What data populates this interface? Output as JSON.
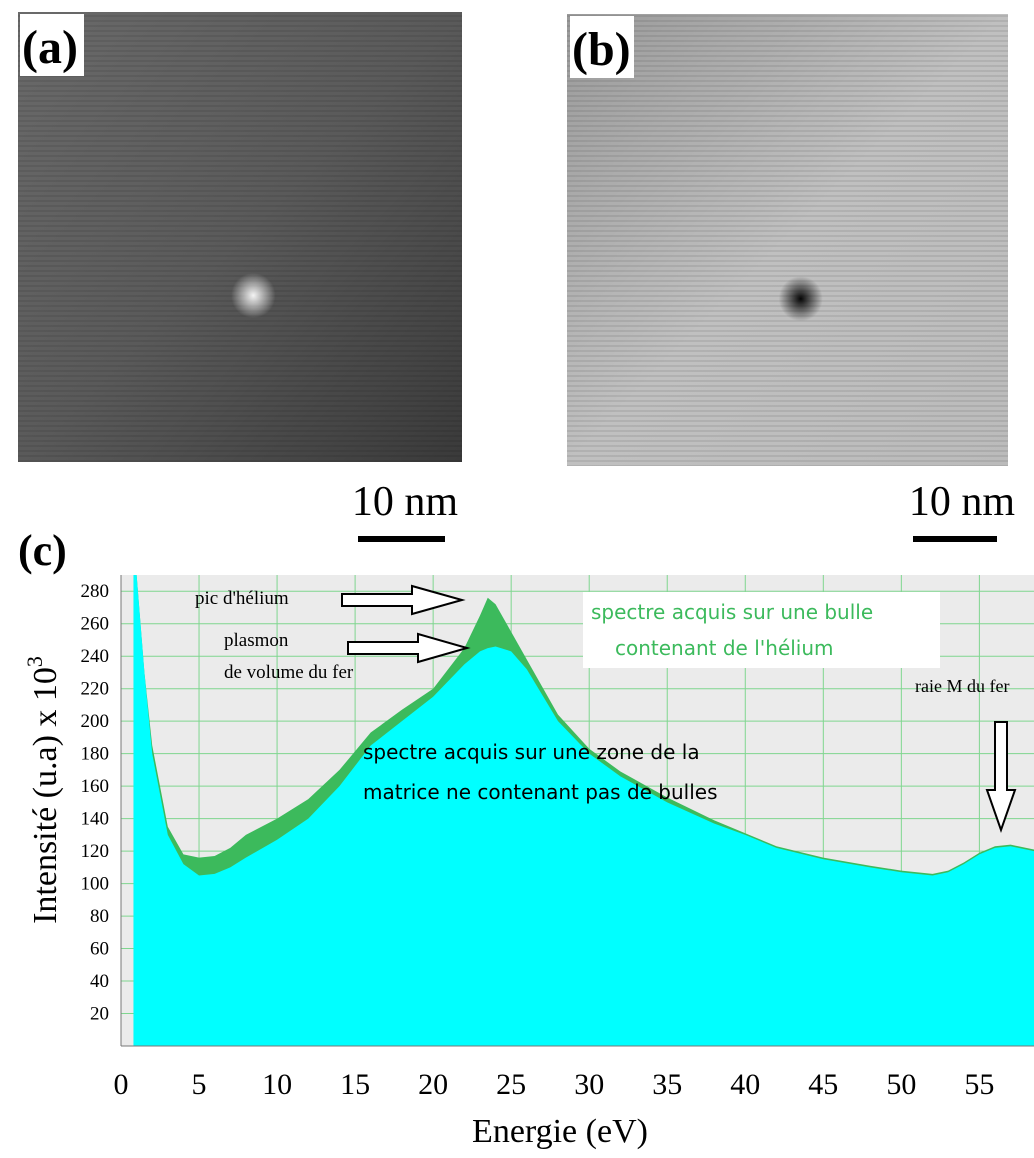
{
  "images": [
    {
      "label": "(a)",
      "scale_bar": "10 nm"
    },
    {
      "label": "(b)",
      "scale_bar": "10 nm"
    }
  ],
  "chart_data": {
    "type": "area",
    "panel_label": "(c)",
    "x_label": "Energie (eV)",
    "y_label": "Intensité (u.a)  x 10",
    "y_label_exponent": "3",
    "x": [
      0.8,
      1,
      1.5,
      2,
      3,
      4,
      5,
      6,
      7,
      8,
      10,
      12,
      14,
      16,
      18,
      20,
      22,
      23,
      23.5,
      24,
      25,
      26,
      28,
      30,
      32,
      35,
      38,
      40,
      42,
      45,
      48,
      50,
      52,
      53,
      54,
      55,
      56,
      57,
      58.5
    ],
    "series": [
      {
        "color": "#3cba5c",
        "values": [
          290,
          290,
          230,
          185,
          135,
          118,
          116,
          117,
          122,
          130,
          140,
          152,
          170,
          193,
          207,
          220,
          245,
          265,
          276,
          272,
          255,
          238,
          204,
          183,
          169,
          153,
          139,
          131,
          123,
          116,
          111,
          108,
          106,
          108,
          113,
          119,
          123,
          124,
          121
        ]
      },
      {
        "color": "#00ffff",
        "values": [
          290,
          290,
          230,
          180,
          130,
          112,
          105,
          106,
          110,
          116,
          127,
          140,
          160,
          185,
          200,
          215,
          235,
          243,
          245,
          246,
          243,
          232,
          200,
          180,
          166,
          150,
          137,
          130,
          122,
          115,
          110,
          107,
          105,
          107,
          112,
          118,
          122,
          123,
          120
        ]
      }
    ],
    "xlim": [
      0,
      58.5
    ],
    "ylim": [
      0,
      290
    ],
    "xticks": [
      0,
      5,
      10,
      15,
      20,
      25,
      30,
      35,
      40,
      45,
      50,
      55
    ],
    "yticks": [
      20,
      40,
      60,
      80,
      100,
      120,
      140,
      160,
      180,
      200,
      220,
      240,
      260,
      280
    ],
    "grid": true,
    "annotations": {
      "helium_peak": "pic d'hélium",
      "plasmon": [
        "plasmon",
        "de volume du fer"
      ],
      "bubble_spectrum": [
        "spectre acquis sur une bulle",
        "contenant de l'hélium"
      ],
      "matrix_spectrum": [
        "spectre acquis sur une zone de la",
        "matrice ne contenant pas de bulles"
      ],
      "iron_m_line": "raie M du fer"
    }
  }
}
